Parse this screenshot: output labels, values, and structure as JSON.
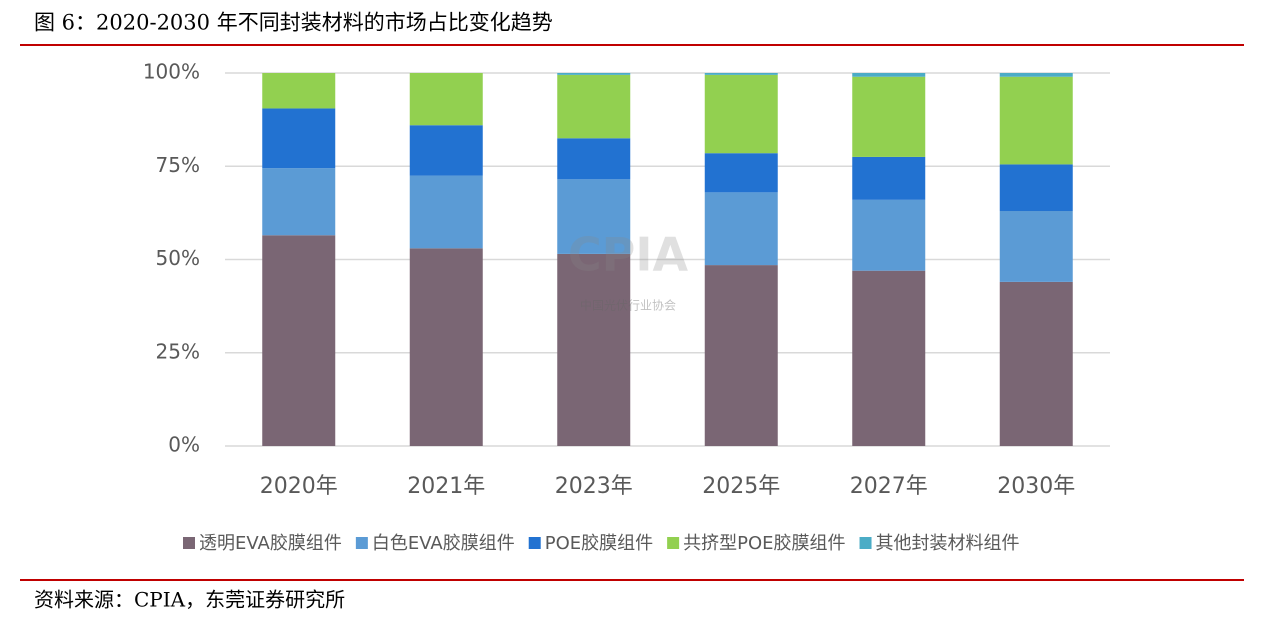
{
  "header": {
    "title": "图 6：2020-2030 年不同封装材料的市场占比变化趋势"
  },
  "chart_data": {
    "type": "stacked-bar",
    "categories": [
      "2020年",
      "2021年",
      "2023年",
      "2025年",
      "2027年",
      "2030年"
    ],
    "series": [
      {
        "name": "透明EVA胶膜组件",
        "color": "#7a6674",
        "values": [
          56.5,
          53,
          51.5,
          48.5,
          47,
          44
        ]
      },
      {
        "name": "白色EVA胶膜组件",
        "color": "#5b9bd5",
        "values": [
          18,
          19.5,
          20,
          19.5,
          19,
          19
        ]
      },
      {
        "name": "POE胶膜组件",
        "color": "#2272d1",
        "values": [
          16,
          13.5,
          11,
          10.5,
          11.5,
          12.5
        ]
      },
      {
        "name": "共挤型POE胶膜组件",
        "color": "#92d050",
        "values": [
          9.5,
          14,
          17,
          21,
          21.5,
          23.5
        ]
      },
      {
        "name": "其他封装材料组件",
        "color": "#4bacc6",
        "values": [
          0,
          0,
          0.5,
          0.5,
          1,
          1
        ]
      }
    ],
    "ylim": [
      0,
      100
    ],
    "yticks": [
      {
        "value": 0,
        "label": "0%"
      },
      {
        "value": 25,
        "label": "25%"
      },
      {
        "value": 50,
        "label": "50%"
      },
      {
        "value": 75,
        "label": "75%"
      },
      {
        "value": 100,
        "label": "100%"
      }
    ],
    "grid": true,
    "legend": "bottom",
    "watermark": [
      "CPIA",
      "中国光伏行业协会"
    ]
  },
  "footer": {
    "source": "资料来源：CPIA，东莞证券研究所"
  }
}
